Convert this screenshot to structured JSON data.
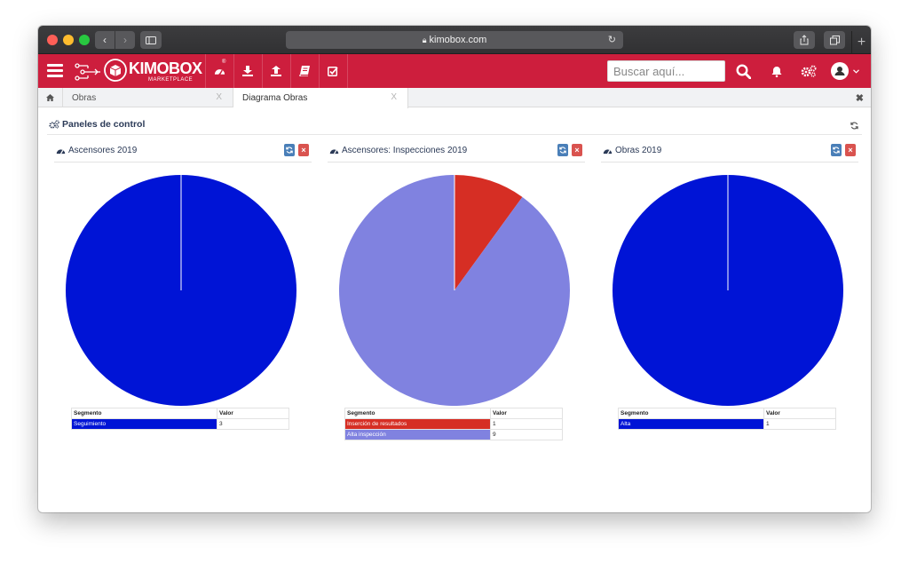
{
  "browser": {
    "url": "kimobox.com"
  },
  "app": {
    "brand": "KIMOBOX",
    "brand_sub": "MARKETPLACE",
    "brand_reg": "®",
    "search": {
      "placeholder": "Buscar aquí...",
      "value": ""
    },
    "accent": "#cd1e3d"
  },
  "tabs": [
    {
      "label": "Obras",
      "close": "X",
      "active": false
    },
    {
      "label": "Diagrama Obras",
      "close": "X",
      "active": true
    }
  ],
  "close_all": "✖",
  "dashboard": {
    "title": "Paneles de control"
  },
  "table_headers": {
    "segment": "Segmento",
    "value": "Valor"
  },
  "panels": [
    {
      "title": "Ascensores 2019",
      "close": "×",
      "chart_data": {
        "type": "pie",
        "categories": [
          "Seguimiento"
        ],
        "values": [
          3
        ],
        "colors": [
          "#0014d6"
        ]
      }
    },
    {
      "title": "Ascensores: Inspecciones 2019",
      "close": "×",
      "chart_data": {
        "type": "pie",
        "categories": [
          "Inserción de resultados",
          "Alta inspección"
        ],
        "values": [
          1,
          9
        ],
        "colors": [
          "#d62e24",
          "#8082e0"
        ]
      }
    },
    {
      "title": "Obras 2019",
      "close": "×",
      "chart_data": {
        "type": "pie",
        "categories": [
          "Alta"
        ],
        "values": [
          1
        ],
        "colors": [
          "#0014d6"
        ]
      }
    }
  ]
}
